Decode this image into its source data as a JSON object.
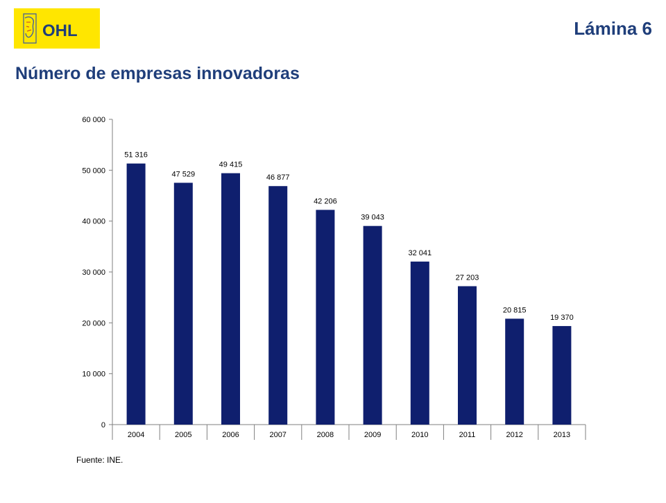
{
  "brand": {
    "logo_text": "OHL",
    "logo_bg": "#ffe600",
    "logo_fg": "#1f3e7a"
  },
  "header": {
    "slide_label": "Lámina 6"
  },
  "title": "Número de empresas innovadoras",
  "source": "Fuente: INE.",
  "colors": {
    "title": "#1f3e7a",
    "bar": "#0f1f6e"
  },
  "chart_data": {
    "type": "bar",
    "categories": [
      "2004",
      "2005",
      "2006",
      "2007",
      "2008",
      "2009",
      "2010",
      "2011",
      "2012",
      "2013"
    ],
    "values": [
      51316,
      47529,
      49415,
      46877,
      42206,
      39043,
      32041,
      27203,
      20815,
      19370
    ],
    "value_labels": [
      "51 316",
      "47 529",
      "49 415",
      "46 877",
      "42 206",
      "39 043",
      "32 041",
      "27 203",
      "20 815",
      "19 370"
    ],
    "ylim": [
      0,
      60000
    ],
    "yticks": [
      0,
      10000,
      20000,
      30000,
      40000,
      50000,
      60000
    ],
    "ytick_labels": [
      "0",
      "10 000",
      "20 000",
      "30 000",
      "40 000",
      "50 000",
      "60 000"
    ],
    "grid": false,
    "legend": false
  }
}
